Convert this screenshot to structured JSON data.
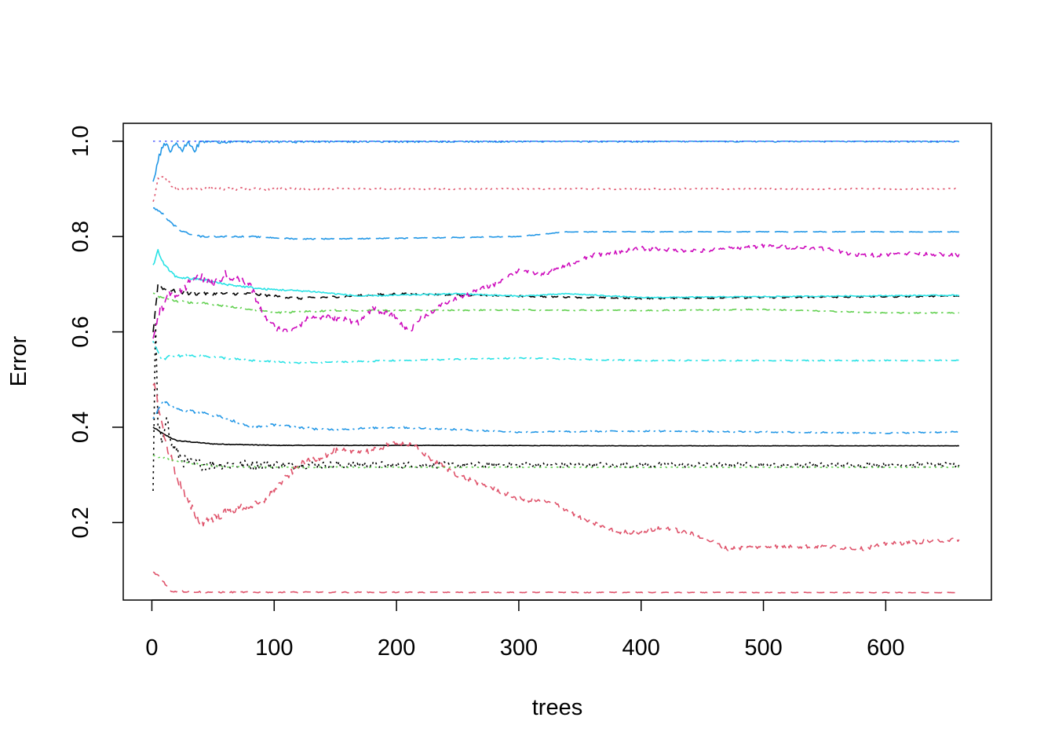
{
  "chart_data": {
    "type": "line",
    "title": "",
    "xlabel": "trees",
    "ylabel": "Error",
    "xlim": [
      -23.4,
      686.4
    ],
    "ylim": [
      0.0375,
      1.0375
    ],
    "xticks": [
      0,
      100,
      200,
      300,
      400,
      500,
      600
    ],
    "yticks": [
      0.2,
      0.4,
      0.6,
      0.8,
      1.0
    ],
    "xtick_labels": [
      "0",
      "100",
      "200",
      "300",
      "400",
      "500",
      "600"
    ],
    "ytick_labels": [
      "0.2",
      "0.4",
      "0.6",
      "0.8",
      "1.0"
    ],
    "grid": false,
    "legend": "none",
    "n_trees": 660,
    "series": [
      {
        "color": "#000000",
        "dash": "solid",
        "noise": 0.001,
        "points": [
          [
            1,
            0.4
          ],
          [
            10,
            0.385
          ],
          [
            20,
            0.372
          ],
          [
            50,
            0.365
          ],
          [
            100,
            0.362
          ],
          [
            200,
            0.362
          ],
          [
            400,
            0.361
          ],
          [
            660,
            0.361
          ]
        ]
      },
      {
        "color": "#000000",
        "dash": "dotted",
        "noise": 0.015,
        "points": [
          [
            1,
            0.255
          ],
          [
            3,
            0.62
          ],
          [
            5,
            0.4
          ],
          [
            8,
            0.37
          ],
          [
            12,
            0.43
          ],
          [
            15,
            0.37
          ],
          [
            20,
            0.35
          ],
          [
            25,
            0.33
          ],
          [
            35,
            0.322
          ],
          [
            100,
            0.321
          ],
          [
            300,
            0.321
          ],
          [
            660,
            0.321
          ]
        ]
      },
      {
        "color": "#000000",
        "dash": "dashed",
        "noise": 0.004,
        "points": [
          [
            1,
            0.6
          ],
          [
            5,
            0.7
          ],
          [
            10,
            0.69
          ],
          [
            30,
            0.68
          ],
          [
            80,
            0.68
          ],
          [
            120,
            0.67
          ],
          [
            200,
            0.68
          ],
          [
            300,
            0.675
          ],
          [
            400,
            0.67
          ],
          [
            500,
            0.672
          ],
          [
            660,
            0.675
          ]
        ]
      },
      {
        "color": "#DF536B",
        "dash": "dashed",
        "noise": 0.002,
        "points": [
          [
            1,
            0.095
          ],
          [
            5,
            0.09
          ],
          [
            10,
            0.075
          ],
          [
            15,
            0.056
          ],
          [
            50,
            0.054
          ],
          [
            660,
            0.053
          ]
        ]
      },
      {
        "color": "#DF536B",
        "dash": "dotted",
        "noise": 0.004,
        "points": [
          [
            1,
            0.87
          ],
          [
            5,
            0.92
          ],
          [
            10,
            0.925
          ],
          [
            15,
            0.91
          ],
          [
            20,
            0.9
          ],
          [
            660,
            0.9
          ]
        ]
      },
      {
        "color": "#DF536B",
        "dash": "dashed",
        "noise": 0.012,
        "points": [
          [
            1,
            0.5
          ],
          [
            5,
            0.45
          ],
          [
            10,
            0.38
          ],
          [
            20,
            0.3
          ],
          [
            30,
            0.24
          ],
          [
            40,
            0.2
          ],
          [
            50,
            0.21
          ],
          [
            70,
            0.23
          ],
          [
            90,
            0.24
          ],
          [
            100,
            0.27
          ],
          [
            120,
            0.32
          ],
          [
            150,
            0.35
          ],
          [
            180,
            0.35
          ],
          [
            200,
            0.37
          ],
          [
            215,
            0.36
          ],
          [
            230,
            0.33
          ],
          [
            250,
            0.3
          ],
          [
            280,
            0.27
          ],
          [
            300,
            0.25
          ],
          [
            330,
            0.24
          ],
          [
            350,
            0.21
          ],
          [
            380,
            0.18
          ],
          [
            400,
            0.18
          ],
          [
            420,
            0.19
          ],
          [
            450,
            0.17
          ],
          [
            470,
            0.145
          ],
          [
            500,
            0.15
          ],
          [
            550,
            0.15
          ],
          [
            580,
            0.145
          ],
          [
            600,
            0.155
          ],
          [
            660,
            0.165
          ]
        ]
      },
      {
        "color": "#61D04F",
        "dash": "dotdash",
        "noise": 0.003,
        "points": [
          [
            1,
            0.68
          ],
          [
            10,
            0.67
          ],
          [
            20,
            0.665
          ],
          [
            60,
            0.655
          ],
          [
            100,
            0.64
          ],
          [
            150,
            0.645
          ],
          [
            200,
            0.645
          ],
          [
            300,
            0.646
          ],
          [
            400,
            0.645
          ],
          [
            500,
            0.647
          ],
          [
            600,
            0.64
          ],
          [
            660,
            0.64
          ]
        ]
      },
      {
        "color": "#61D04F",
        "dash": "dotted",
        "noise": 0.002,
        "points": [
          [
            1,
            0.34
          ],
          [
            20,
            0.33
          ],
          [
            50,
            0.318
          ],
          [
            100,
            0.316
          ],
          [
            300,
            0.316
          ],
          [
            660,
            0.316
          ]
        ]
      },
      {
        "color": "#2297E6",
        "dash": "solid",
        "noise": 0.006,
        "points": [
          [
            1,
            0.91
          ],
          [
            5,
            0.96
          ],
          [
            10,
            1.0
          ],
          [
            15,
            0.98
          ],
          [
            20,
            1.0
          ],
          [
            25,
            0.98
          ],
          [
            30,
            1.0
          ],
          [
            35,
            0.98
          ],
          [
            40,
            1.0
          ],
          [
            660,
            1.0
          ]
        ]
      },
      {
        "color": "#2297E6",
        "dash": "longdash",
        "noise": 0.002,
        "points": [
          [
            1,
            0.86
          ],
          [
            8,
            0.85
          ],
          [
            15,
            0.83
          ],
          [
            25,
            0.81
          ],
          [
            40,
            0.8
          ],
          [
            80,
            0.8
          ],
          [
            120,
            0.795
          ],
          [
            200,
            0.796
          ],
          [
            300,
            0.8
          ],
          [
            320,
            0.805
          ],
          [
            340,
            0.81
          ],
          [
            660,
            0.81
          ]
        ]
      },
      {
        "color": "#2297E6",
        "dash": "dotdash",
        "noise": 0.004,
        "points": [
          [
            1,
            0.42
          ],
          [
            10,
            0.455
          ],
          [
            20,
            0.44
          ],
          [
            40,
            0.43
          ],
          [
            60,
            0.42
          ],
          [
            80,
            0.4
          ],
          [
            100,
            0.405
          ],
          [
            140,
            0.395
          ],
          [
            200,
            0.4
          ],
          [
            300,
            0.39
          ],
          [
            400,
            0.392
          ],
          [
            500,
            0.39
          ],
          [
            600,
            0.388
          ],
          [
            660,
            0.39
          ]
        ]
      },
      {
        "color": "#28E2E5",
        "dash": "solid",
        "noise": 0.003,
        "points": [
          [
            1,
            0.74
          ],
          [
            5,
            0.77
          ],
          [
            10,
            0.74
          ],
          [
            20,
            0.715
          ],
          [
            40,
            0.71
          ],
          [
            60,
            0.7
          ],
          [
            90,
            0.69
          ],
          [
            130,
            0.685
          ],
          [
            170,
            0.675
          ],
          [
            250,
            0.68
          ],
          [
            300,
            0.675
          ],
          [
            340,
            0.68
          ],
          [
            400,
            0.672
          ],
          [
            500,
            0.674
          ],
          [
            660,
            0.677
          ]
        ]
      },
      {
        "color": "#28E2E5",
        "dash": "dotdash",
        "noise": 0.003,
        "points": [
          [
            1,
            0.58
          ],
          [
            8,
            0.54
          ],
          [
            15,
            0.55
          ],
          [
            40,
            0.55
          ],
          [
            80,
            0.54
          ],
          [
            120,
            0.535
          ],
          [
            200,
            0.54
          ],
          [
            300,
            0.545
          ],
          [
            400,
            0.54
          ],
          [
            500,
            0.54
          ],
          [
            660,
            0.54
          ]
        ]
      },
      {
        "color": "#CD0BBC",
        "dash": "dashed",
        "noise": 0.012,
        "points": [
          [
            1,
            0.59
          ],
          [
            5,
            0.64
          ],
          [
            15,
            0.68
          ],
          [
            25,
            0.68
          ],
          [
            35,
            0.72
          ],
          [
            50,
            0.7
          ],
          [
            60,
            0.72
          ],
          [
            80,
            0.7
          ],
          [
            90,
            0.64
          ],
          [
            100,
            0.61
          ],
          [
            110,
            0.6
          ],
          [
            130,
            0.63
          ],
          [
            150,
            0.63
          ],
          [
            170,
            0.62
          ],
          [
            180,
            0.65
          ],
          [
            200,
            0.63
          ],
          [
            210,
            0.6
          ],
          [
            220,
            0.63
          ],
          [
            240,
            0.66
          ],
          [
            260,
            0.68
          ],
          [
            280,
            0.7
          ],
          [
            300,
            0.73
          ],
          [
            320,
            0.72
          ],
          [
            340,
            0.74
          ],
          [
            360,
            0.76
          ],
          [
            400,
            0.775
          ],
          [
            450,
            0.77
          ],
          [
            500,
            0.78
          ],
          [
            550,
            0.775
          ],
          [
            580,
            0.76
          ],
          [
            620,
            0.765
          ],
          [
            660,
            0.76
          ]
        ]
      },
      {
        "color": "#4F5FFF",
        "dash": "dotted",
        "noise": 0.0,
        "points": [
          [
            1,
            1.0
          ],
          [
            660,
            1.0
          ]
        ]
      }
    ]
  }
}
